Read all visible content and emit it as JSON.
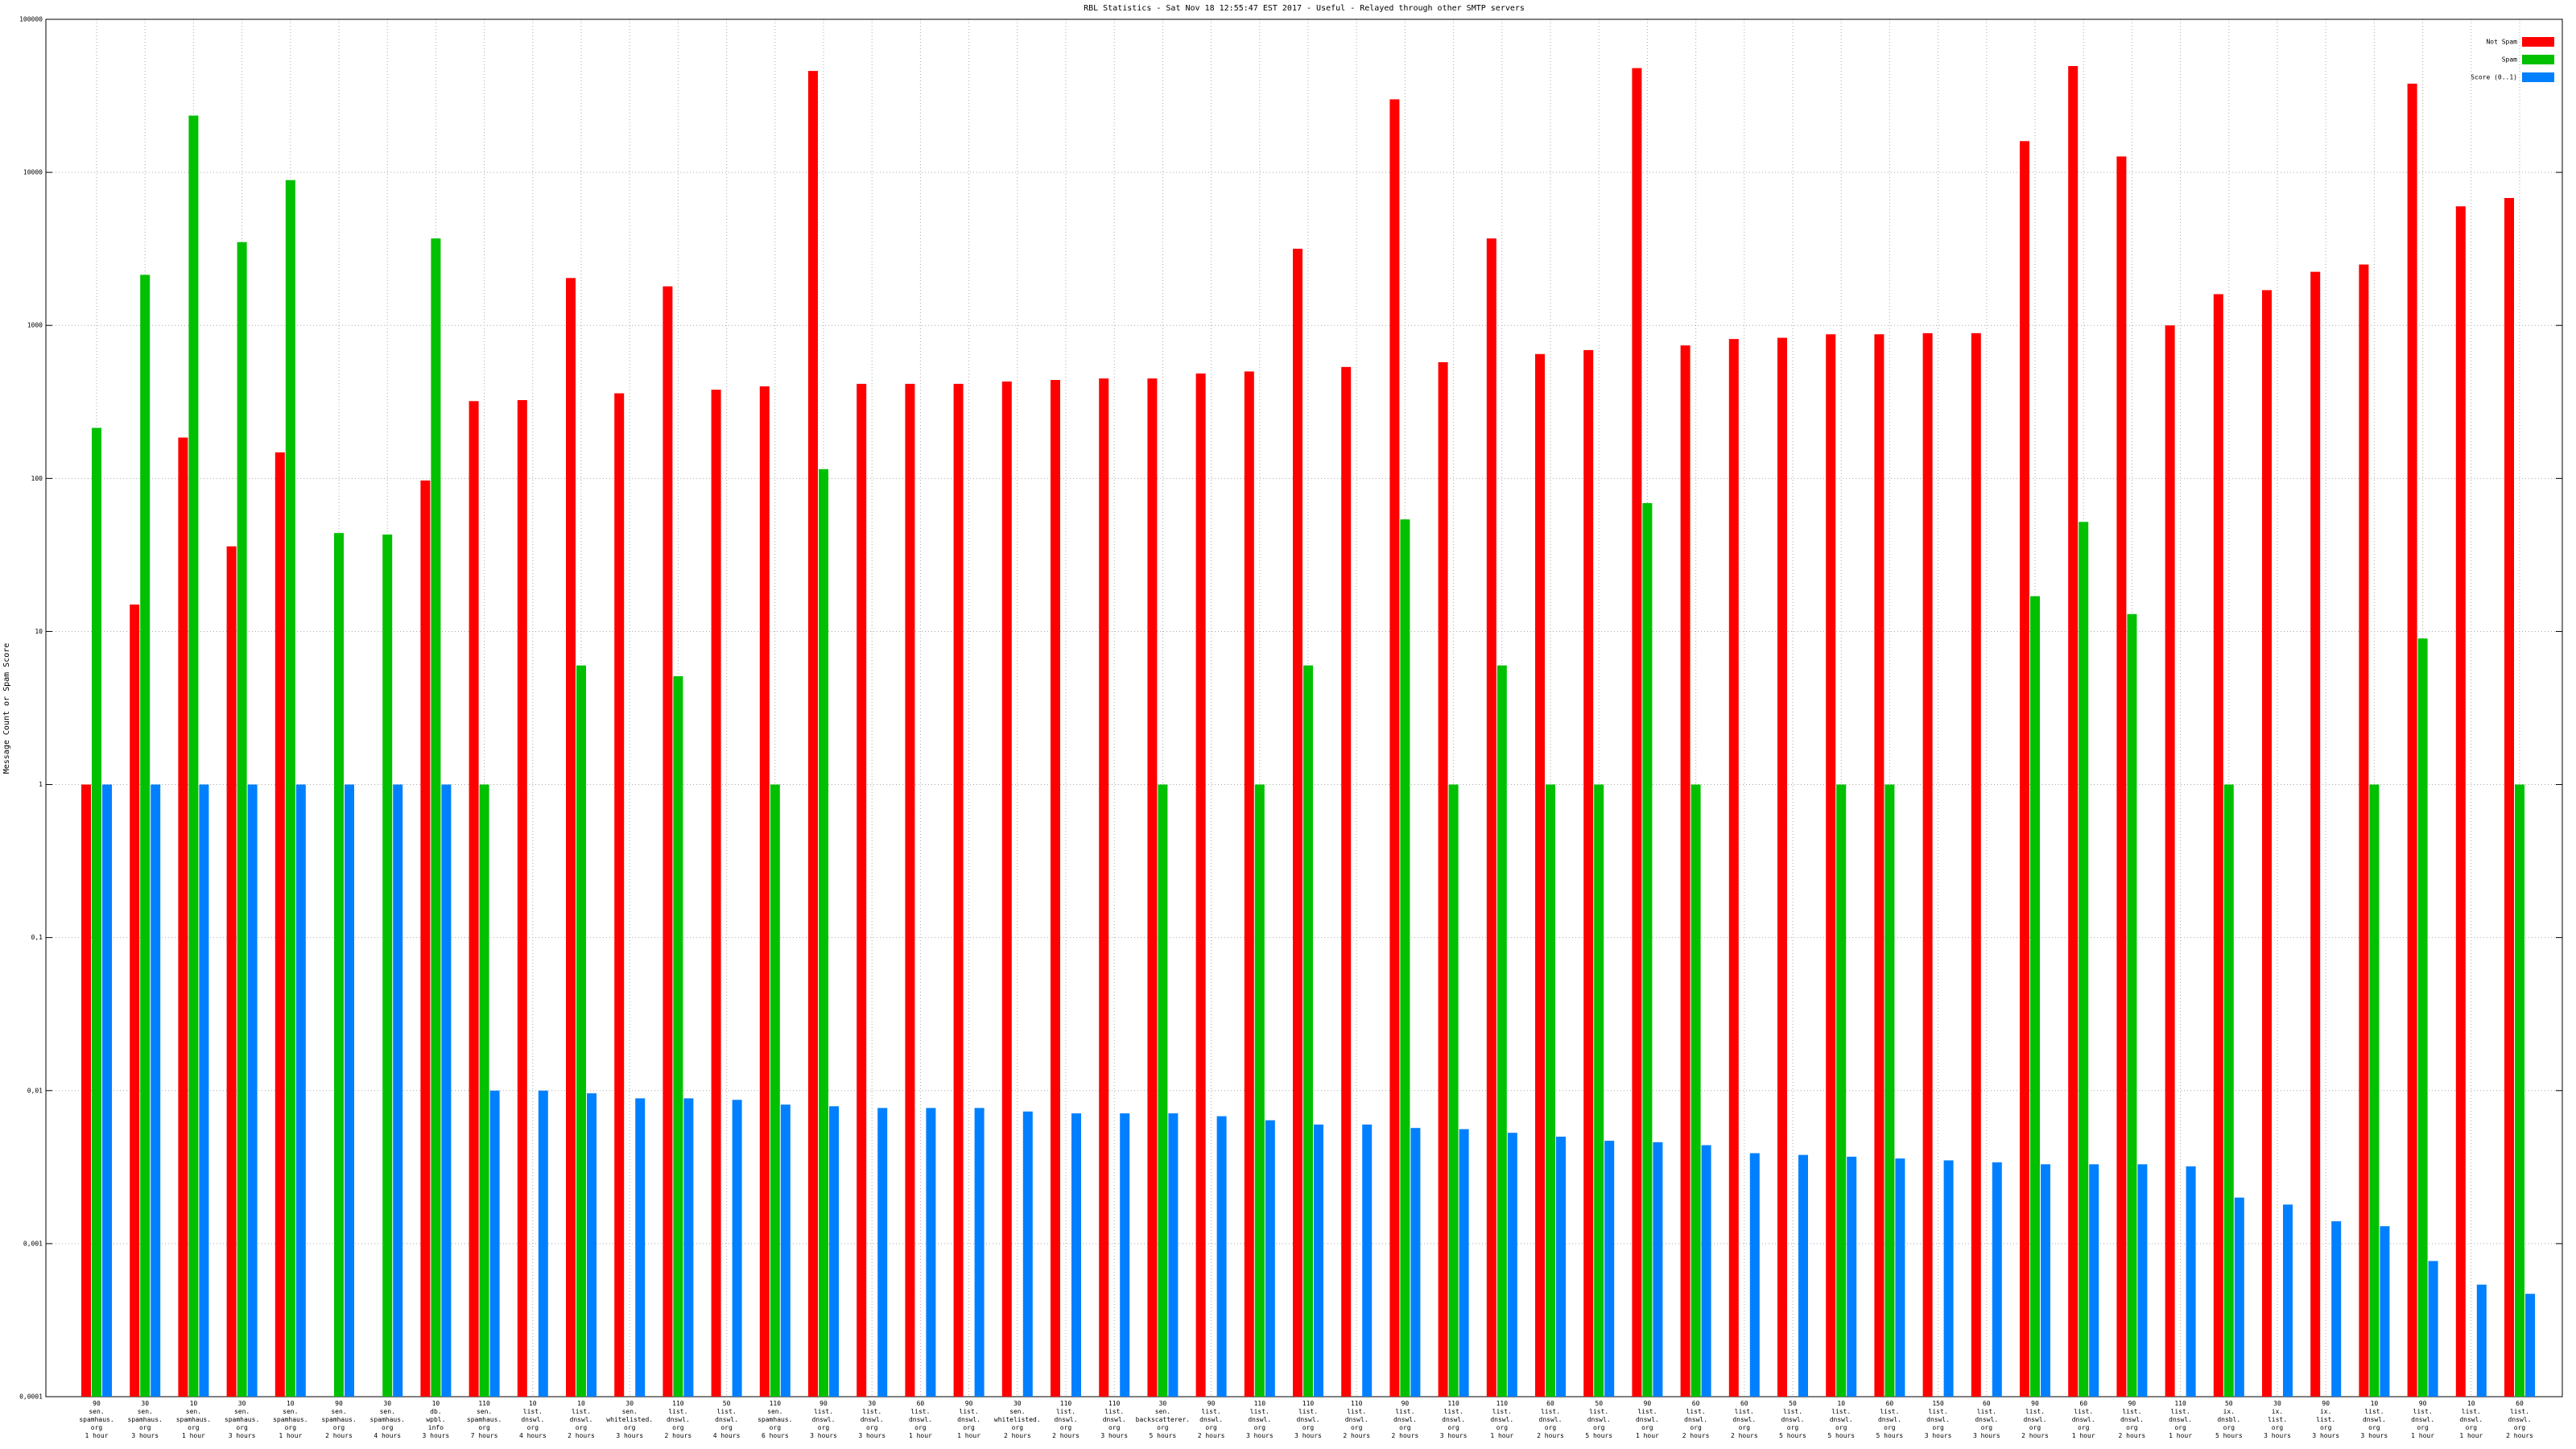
{
  "chart_data": {
    "type": "bar",
    "title": "RBL Statistics - Sat Nov 18 12:55:47 EST 2017 - Useful - Relayed through other SMTP servers",
    "y_label": "Message Count or Spam Score",
    "log_scale": true,
    "grid": true,
    "legend": "top-right",
    "ylim": [
      0.0001,
      100000
    ],
    "yticks": [
      {
        "value": 0.0001,
        "label": "0,0001"
      },
      {
        "value": 0.001,
        "label": "0,001"
      },
      {
        "value": 0.01,
        "label": "0,01"
      },
      {
        "value": 0.1,
        "label": "0,1"
      },
      1,
      10,
      100,
      1000,
      10000,
      100000
    ],
    "categories": [
      "90\nsen.\nspamhaus.\norg\n1 hour",
      "30\nsen.\nspamhaus.\norg\n3 hours",
      "10\nsen.\nspamhaus.\norg\n1 hour",
      "30\nsen.\nspamhaus.\norg\n3 hours",
      "10\nsen.\nspamhaus.\norg\n1 hour",
      "90\nsen.\nspamhaus.\norg\n2 hours",
      "30\nsen.\nspamhaus.\norg\n4 hours",
      "10\ndb.\nwpbl.\ninfo\n3 hours",
      "110\nsen.\nspamhaus.\norg\n7 hours",
      "10\nlist.\ndnswl.\norg\n4 hours",
      "10\nlist.\ndnswl.\norg\n2 hours",
      "30\nsen.\nwhitelisted.\norg\n3 hours",
      "110\nlist.\ndnswl.\norg\n2 hours",
      "50\nlist.\ndnswl.\norg\n4 hours",
      "110\nsen.\nspamhaus.\norg\n6 hours",
      "90\nlist.\ndnswl.\norg\n3 hours",
      "30\nlist.\ndnswl.\norg\n3 hours",
      "60\nlist.\ndnswl.\norg\n1 hour",
      "90\nlist.\ndnswl.\norg\n1 hour",
      "30\nsen.\nwhitelisted.\norg\n2 hours",
      "110\nlist.\ndnswl.\norg\n2 hours",
      "110\nlist.\ndnswl.\norg\n3 hours",
      "30\nsen.\nbackscatterer.\norg\n5 hours",
      "90\nlist.\ndnswl.\norg\n2 hours",
      "110\nlist.\ndnswl.\norg\n3 hours",
      "110\nlist.\ndnswl.\norg\n3 hours",
      "110\nlist.\ndnswl.\norg\n2 hours",
      "90\nlist.\ndnswl.\norg\n2 hours",
      "110\nlist.\ndnswl.\norg\n3 hours",
      "110\nlist.\ndnswl.\norg\n1 hour",
      "60\nlist.\ndnswl.\norg\n2 hours",
      "50\nlist.\ndnswl.\norg\n5 hours",
      "90\nlist.\ndnswl.\norg\n1 hour",
      "60\nlist.\ndnswl.\norg\n2 hours",
      "60\nlist.\ndnswl.\norg\n2 hours",
      "50\nlist.\ndnswl.\norg\n5 hours",
      "10\nlist.\ndnswl.\norg\n5 hours",
      "60\nlist.\ndnswl.\norg\n5 hours",
      "150\nlist.\ndnswl.\norg\n3 hours",
      "60\nlist.\ndnswl.\norg\n3 hours",
      "90\nlist.\ndnswl.\norg\n2 hours",
      "60\nlist.\ndnswl.\norg\n1 hour",
      "90\nlist.\ndnswl.\norg\n2 hours",
      "110\nlist.\ndnswl.\norg\n1 hour",
      "50\nix.\ndnsbl.\norg\n5 hours",
      "30\nix.\nlist.\norg\n3 hours",
      "90\nix.\nlist.\norg\n3 hours",
      "10\nlist.\ndnswl.\norg\n3 hours",
      "90\nlist.\ndnswl.\norg\n1 hour",
      "10\nlist.\ndnswl.\norg\n1 hour",
      "60\nlist.\ndnswl.\norg\n2 hours"
    ],
    "series": [
      {
        "name": "Not Spam",
        "color": "#ff0000",
        "values": [
          1,
          15,
          185,
          36,
          148,
          null,
          null,
          97,
          320,
          325,
          2040,
          360,
          1800,
          380,
          400,
          46000,
          415,
          415,
          415,
          430,
          440,
          450,
          450,
          485,
          500,
          3170,
          535,
          30000,
          575,
          3700,
          650,
          690,
          48000,
          740,
          815,
          830,
          875,
          875,
          890,
          890,
          16000,
          49500,
          12700,
          1000,
          1600,
          1700,
          2240,
          2500,
          38000,
          6000,
          6800
        ]
      },
      {
        "name": "Spam",
        "color": "#00c000",
        "values": [
          214,
          2140,
          23500,
          3500,
          8900,
          44,
          43,
          3700,
          1,
          null,
          6,
          null,
          5.1,
          null,
          1,
          115,
          null,
          null,
          null,
          null,
          null,
          null,
          1,
          null,
          1,
          6,
          null,
          54,
          1,
          6,
          1,
          1,
          69,
          1,
          null,
          null,
          1,
          1,
          null,
          null,
          17,
          52,
          13,
          null,
          1,
          null,
          null,
          1,
          9,
          null,
          1
        ]
      },
      {
        "name": "Score (0..1)",
        "color": "#0080ff",
        "values": [
          1,
          1,
          1,
          1,
          1,
          1,
          1,
          1,
          0.01,
          0.01,
          0.0096,
          0.0089,
          0.0089,
          0.0087,
          0.0081,
          0.0079,
          0.0077,
          0.0077,
          0.0077,
          0.0073,
          0.0071,
          0.0071,
          0.0071,
          0.0068,
          0.0064,
          0.006,
          0.006,
          0.0057,
          0.0056,
          0.0053,
          0.005,
          0.0047,
          0.0046,
          0.0044,
          0.0039,
          0.0038,
          0.0037,
          0.0036,
          0.0035,
          0.0034,
          0.0033,
          0.0033,
          0.0033,
          0.0032,
          0.002,
          0.0018,
          0.0014,
          0.0013,
          0.00077,
          0.00054,
          0.00047
        ]
      }
    ]
  }
}
